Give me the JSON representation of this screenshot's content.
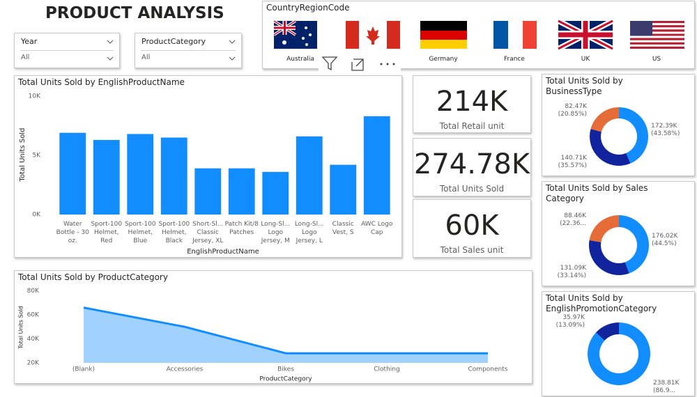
{
  "title": "PRODUCT ANALYSIS",
  "slicers": [
    {
      "label": "Year",
      "value": "All"
    },
    {
      "label": "ProductCategory",
      "value": "All"
    }
  ],
  "country_slicer": {
    "title": "CountryRegionCode",
    "items": [
      "Australia",
      "Canada",
      "Germany",
      "France",
      "UK",
      "US"
    ]
  },
  "cards": [
    {
      "value": "214K",
      "label": "Total Retail unit"
    },
    {
      "value": "274.78K",
      "label": "Total Units Sold"
    },
    {
      "value": "60K",
      "label": "Total Sales unit"
    }
  ],
  "chart_data": [
    {
      "type": "bar",
      "title": "Total Units Sold by EnglishProductName",
      "x_label": "EnglishProductName",
      "y_label": "Total Units Sold",
      "categories": [
        "Water Bottle - 30 oz.",
        "Sport-100 Helmet, Red",
        "Sport-100 Helmet, Blue",
        "Sport-100 Helmet, Black",
        "Short-Sl... Classic Jersey, XL",
        "Patch Kit/8 Patches",
        "Long-Sl... Logo Jersey, M",
        "Long-Sl... Logo Jersey, L",
        "Classic Vest, S",
        "AWC Logo Cap"
      ],
      "values": [
        6900,
        6300,
        6800,
        6500,
        3900,
        3900,
        3600,
        6600,
        4200,
        8300
      ],
      "color": "#118dff",
      "ylim": [
        0,
        10000
      ],
      "yticks": [
        {
          "value": 0,
          "label": "0K"
        },
        {
          "value": 5000,
          "label": "5K"
        },
        {
          "value": 10000,
          "label": "10K"
        }
      ],
      "grid": false
    },
    {
      "type": "area",
      "title": "Total Units Sold by ProductCategory",
      "x_label": "ProductCategory",
      "y_label": "Total Units Sold",
      "categories": [
        "(Blank)",
        "Accessories",
        "Bikes",
        "Clothing",
        "Components"
      ],
      "values": [
        66000,
        50000,
        28000,
        28000,
        28000
      ],
      "color": "#118dff",
      "ylim": [
        20000,
        80000
      ],
      "yticks": [
        {
          "value": 20000,
          "label": "20K"
        },
        {
          "value": 40000,
          "label": "40K"
        },
        {
          "value": 60000,
          "label": "60K"
        },
        {
          "value": 80000,
          "label": "80K"
        }
      ],
      "grid": false
    },
    {
      "type": "donut",
      "title": "Total Units Sold by BusinessType",
      "values": [
        172.39,
        140.71,
        82.47
      ],
      "value_labels": [
        "172.39K (43.58%)",
        "140.71K (35.57%)",
        "82.47K (20.85%)"
      ],
      "colors": [
        "#118dff",
        "#12239e",
        "#e66c37"
      ]
    },
    {
      "type": "donut",
      "title": "Total Units Sold by Sales Category",
      "values": [
        176.02,
        131.09,
        88.46
      ],
      "value_labels": [
        "176.02K (44.5%)",
        "131.09K (33.14%)",
        "88.46K (22.36..."
      ],
      "colors": [
        "#118dff",
        "#12239e",
        "#e66c37"
      ]
    },
    {
      "type": "donut",
      "title": "Total Units Sold by EnglishPromotionCategory",
      "values": [
        238.81,
        35.97
      ],
      "value_labels": [
        "238.81K (86.9...",
        "35.97K (13.09%)"
      ],
      "colors": [
        "#118dff",
        "#12239e"
      ]
    }
  ]
}
